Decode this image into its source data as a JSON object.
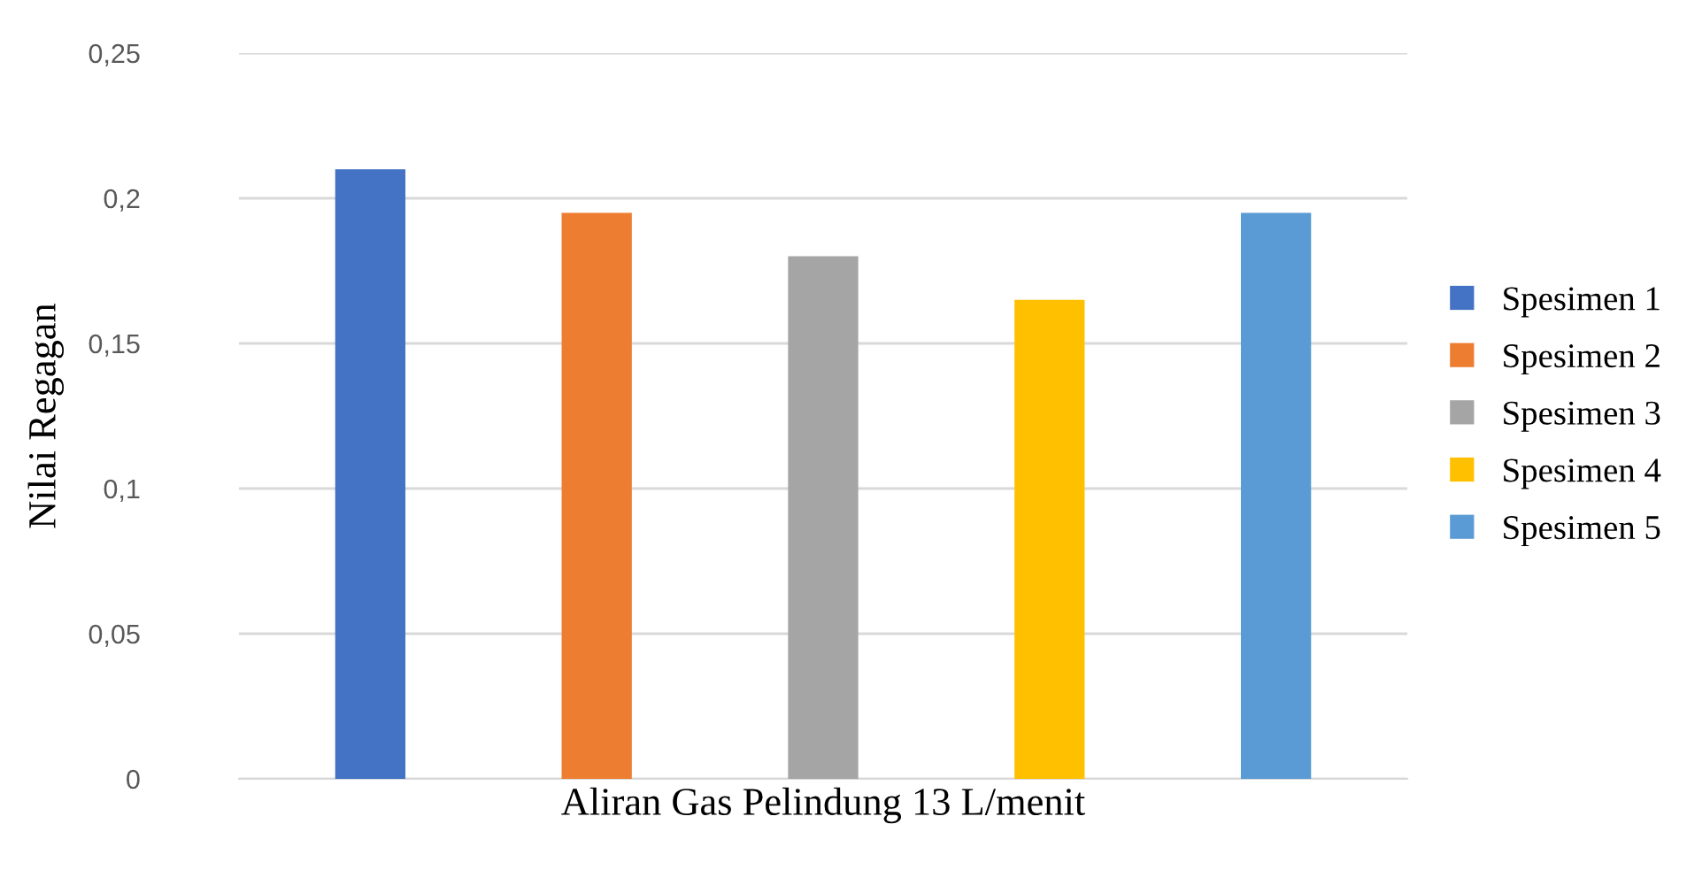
{
  "chart_data": {
    "type": "bar",
    "xlabel": "Aliran Gas Pelindung 13 L/menit",
    "ylabel": "Nilai Regagan",
    "categories": [
      null
    ],
    "series": [
      {
        "name": "Spesimen 1",
        "color": "#4472c4",
        "values": [
          0.21
        ]
      },
      {
        "name": "Spesimen 2",
        "color": "#ed7d31",
        "values": [
          0.195
        ]
      },
      {
        "name": "Spesimen 3",
        "color": "#a5a5a5",
        "values": [
          0.18
        ]
      },
      {
        "name": "Spesimen 4",
        "color": "#ffc000",
        "values": [
          0.165
        ]
      },
      {
        "name": "Spesimen 5",
        "color": "#5b9bd5",
        "values": [
          0.195
        ]
      }
    ],
    "ylim": [
      0,
      0.25
    ],
    "yticks": [
      0,
      {
        "value": 0.05,
        "label": "0,05"
      },
      {
        "value": 0.1,
        "label": "0,1"
      },
      {
        "value": 0.15,
        "label": "0,15"
      },
      {
        "value": 0.2,
        "label": "0,2"
      },
      {
        "value": 0.25,
        "label": "0,25"
      }
    ],
    "grid": "y",
    "legend": "right"
  }
}
